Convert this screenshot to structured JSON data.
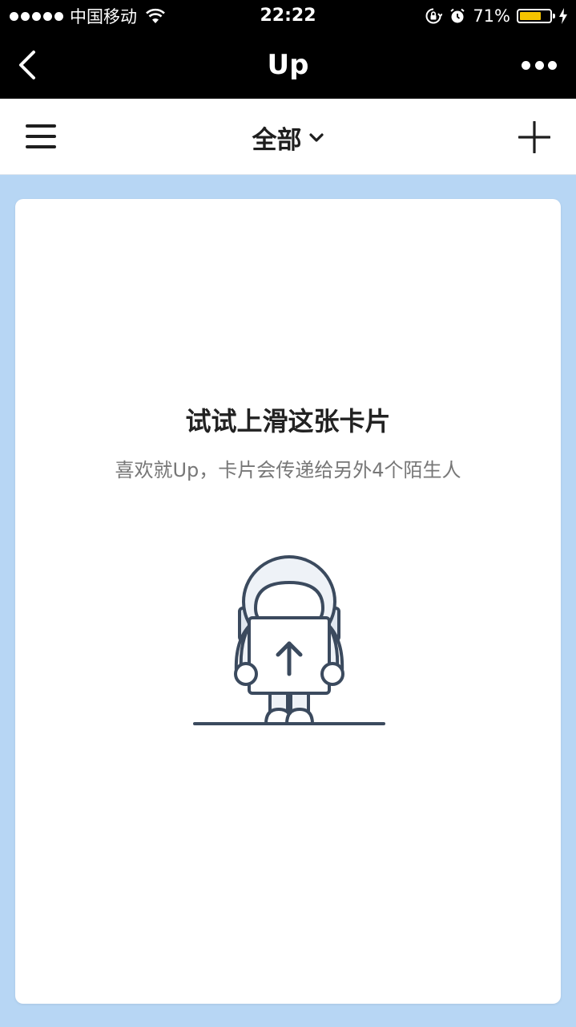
{
  "status_bar": {
    "carrier": "中国移动",
    "time": "22:22",
    "battery_percent_text": "71%",
    "battery_level": 0.71,
    "icons": [
      "signal-dots-icon",
      "wifi-icon",
      "rotation-lock-icon",
      "alarm-icon",
      "battery-icon",
      "charging-bolt-icon"
    ]
  },
  "nav": {
    "title": "Up",
    "back_icon": "chevron-left-icon",
    "more_icon": "more-horizontal-icon"
  },
  "toolbar": {
    "filter_label": "全部",
    "menu_icon": "hamburger-menu-icon",
    "add_icon": "plus-icon"
  },
  "card": {
    "title": "试试上滑这张卡片",
    "subtitle": "喜欢就Up，卡片会传递给另外4个陌生人",
    "illustration": "astronaut-holding-up-arrow-sign"
  },
  "colors": {
    "background": "#b7d6f4",
    "bar": "#000000",
    "battery": "#f5c400",
    "illustration_stroke": "#3b4a5e"
  }
}
